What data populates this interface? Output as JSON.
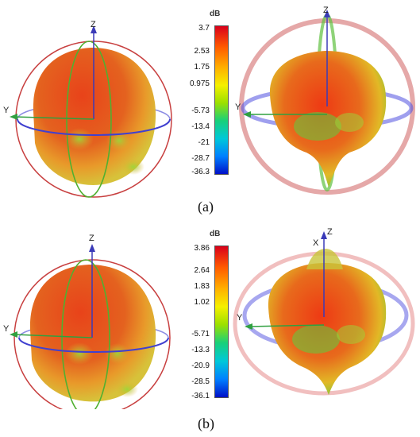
{
  "figures": [
    {
      "caption": "(a)",
      "scale_unit": "dB",
      "scale_ticks": [
        "3.7",
        "2.53",
        "1.75",
        "0.975",
        "-5.73",
        "-13.4",
        "-21",
        "-28.7",
        "-36.3"
      ],
      "axes": {
        "z": "Z",
        "y": "Y"
      }
    },
    {
      "caption": "(b)",
      "scale_unit": "dB",
      "scale_ticks": [
        "3.86",
        "2.64",
        "1.83",
        "1.02",
        "-5.71",
        "-13.3",
        "-20.9",
        "-28.5",
        "-36.1"
      ],
      "axes": {
        "z": "Z",
        "y": "Y",
        "x": "X"
      }
    }
  ],
  "colors": {
    "scale_gradient": [
      "#d9001b",
      "#ff5a00",
      "#ffb000",
      "#f5f000",
      "#9be000",
      "#18d07a",
      "#00c8d8",
      "#0080ff",
      "#0010c8"
    ],
    "sphere_fill": "#e0541e",
    "ring_red": "#c84040",
    "ring_blue": "#4040d0",
    "ring_green": "#50b030"
  }
}
